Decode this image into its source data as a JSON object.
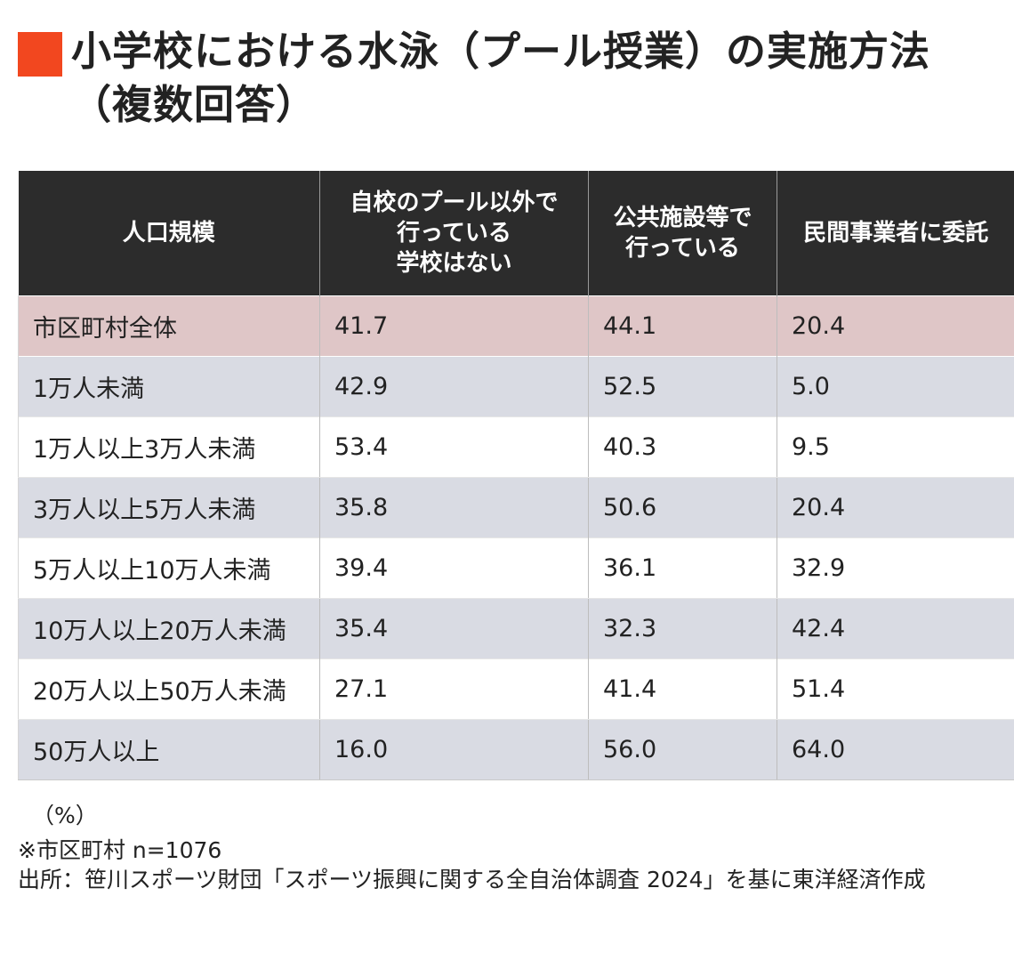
{
  "title": "小学校における水泳（プール授業）の実施方法（複数回答）",
  "colors": {
    "accent": "#f2471f",
    "header_bg": "#2c2c2c",
    "total_row": "#dfc6c7",
    "shade_row": "#d9dbe3"
  },
  "chart_data": {
    "type": "table",
    "columns": [
      "人口規模",
      "自校のプール以外で\n行っている\n学校はない",
      "公共施設等で\n行っている",
      "民間事業者に委託"
    ],
    "rows": [
      [
        "市区町村全体",
        "41.7",
        "44.1",
        "20.4"
      ],
      [
        "1万人未満",
        "42.9",
        "52.5",
        "5.0"
      ],
      [
        "1万人以上3万人未満",
        "53.4",
        "40.3",
        "9.5"
      ],
      [
        "3万人以上5万人未満",
        "35.8",
        "50.6",
        "20.4"
      ],
      [
        "5万人以上10万人未満",
        "39.4",
        "36.1",
        "32.9"
      ],
      [
        "10万人以上20万人未満",
        "35.4",
        "32.3",
        "42.4"
      ],
      [
        "20万人以上50万人未満",
        "27.1",
        "41.4",
        "51.4"
      ],
      [
        "50万人以上",
        "16.0",
        "56.0",
        "64.0"
      ]
    ]
  },
  "notes": {
    "unit": "（%）",
    "sample": "※市区町村 n=1076",
    "source": "出所：笹川スポーツ財団「スポーツ振興に関する全自治体調査 2024」を基に東洋経済作成"
  }
}
